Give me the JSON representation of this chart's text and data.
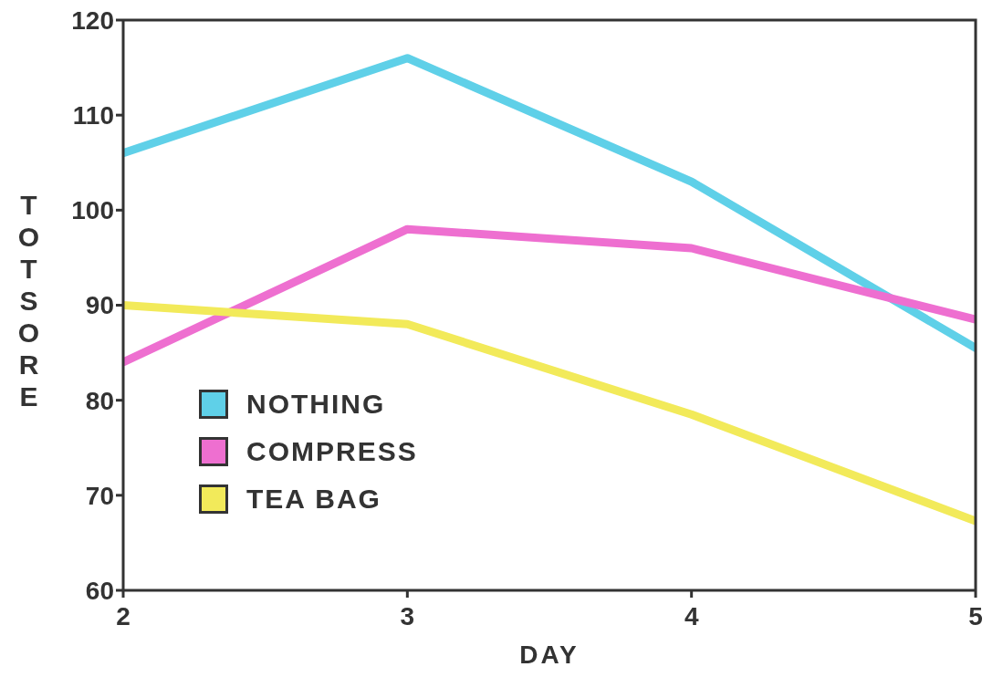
{
  "chart_data": {
    "type": "line",
    "xlabel": "DAY",
    "ylabel": "TOTSORE",
    "x": [
      2,
      3,
      4,
      5
    ],
    "xlim": [
      2,
      5
    ],
    "xticks": [
      2,
      3,
      4,
      5
    ],
    "ylim": [
      60,
      120
    ],
    "yticks": [
      60,
      70,
      80,
      90,
      100,
      110,
      120
    ],
    "grid": false,
    "legend": "bottom left",
    "marker": "none",
    "line_style": "solid",
    "series": [
      {
        "name": "NOTHING",
        "color": "#5fd0e8",
        "values": [
          106,
          116,
          103,
          85.5
        ]
      },
      {
        "name": "COMPRESS",
        "color": "#ee6fd0",
        "values": [
          84,
          98,
          96,
          88.5
        ]
      },
      {
        "name": "TEA BAG",
        "color": "#f2ea5a",
        "values": [
          90,
          88,
          78.5,
          67.3
        ]
      }
    ]
  }
}
